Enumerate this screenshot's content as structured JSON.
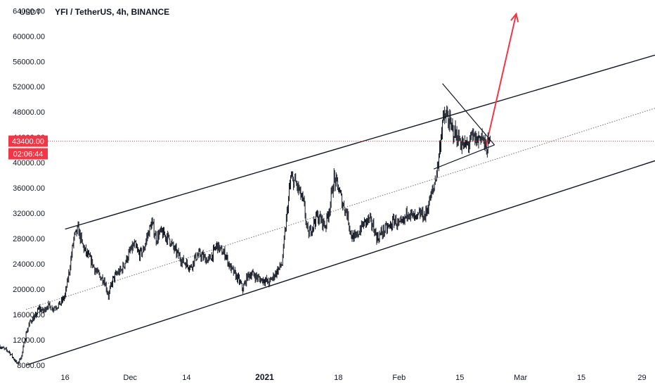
{
  "header": {
    "currency": "USDT",
    "symbol_title": "YFI / TetherUS, 4h, BINANCE"
  },
  "chart_data": {
    "type": "candlestick",
    "symbol": "YFI / TetherUS",
    "interval": "4h",
    "exchange": "BINANCE",
    "y_unit": "USDT",
    "y_tick_labels": [
      "64000.00",
      "60000.00",
      "56000.00",
      "52000.00",
      "48000.00",
      "44000.00",
      "40000.00",
      "36000.00",
      "32000.00",
      "28000.00",
      "24000.00",
      "20000.00",
      "16000.00",
      "12000.00",
      "8000.00"
    ],
    "y_ticks": [
      64000,
      60000,
      56000,
      52000,
      48000,
      44000,
      40000,
      36000,
      32000,
      28000,
      24000,
      20000,
      16000,
      12000,
      8000
    ],
    "ylim": [
      7000,
      65700
    ],
    "x_tick_labels": [
      {
        "label": "16",
        "date": "2020-11-16"
      },
      {
        "label": "Dec",
        "date": "2020-12-01"
      },
      {
        "label": "14",
        "date": "2020-12-14"
      },
      {
        "label": "2021",
        "date": "2021-01-01",
        "bold": true
      },
      {
        "label": "18",
        "date": "2021-01-18"
      },
      {
        "label": "Feb",
        "date": "2021-02-01"
      },
      {
        "label": "15",
        "date": "2021-02-15"
      },
      {
        "label": "Mar",
        "date": "2021-03-01"
      },
      {
        "label": "15",
        "date": "2021-03-15"
      },
      {
        "label": "29",
        "date": "2021-03-29"
      }
    ],
    "xlim": [
      "2020-11-01",
      "2021-04-01"
    ],
    "price_path": [
      [
        "2020-11-01",
        11000
      ],
      [
        "2020-11-02",
        10500
      ],
      [
        "2020-11-03",
        10200
      ],
      [
        "2020-11-04",
        9200
      ],
      [
        "2020-11-05",
        8200
      ],
      [
        "2020-11-06",
        9500
      ],
      [
        "2020-11-07",
        13000
      ],
      [
        "2020-11-08",
        15000
      ],
      [
        "2020-11-09",
        15500
      ],
      [
        "2020-11-10",
        17000
      ],
      [
        "2020-11-11",
        16500
      ],
      [
        "2020-11-12",
        17500
      ],
      [
        "2020-11-13",
        17000
      ],
      [
        "2020-11-14",
        17300
      ],
      [
        "2020-11-15",
        17800
      ],
      [
        "2020-11-16",
        19000
      ],
      [
        "2020-11-17",
        23000
      ],
      [
        "2020-11-18",
        28000
      ],
      [
        "2020-11-19",
        29500
      ],
      [
        "2020-11-20",
        27000
      ],
      [
        "2020-11-21",
        25500
      ],
      [
        "2020-11-22",
        24500
      ],
      [
        "2020-11-23",
        23000
      ],
      [
        "2020-11-24",
        22000
      ],
      [
        "2020-11-25",
        21500
      ],
      [
        "2020-11-26",
        19000
      ],
      [
        "2020-11-27",
        21500
      ],
      [
        "2020-11-28",
        22500
      ],
      [
        "2020-11-29",
        23000
      ],
      [
        "2020-11-30",
        24500
      ],
      [
        "2020-12-01",
        26000
      ],
      [
        "2020-12-02",
        27000
      ],
      [
        "2020-12-03",
        25500
      ],
      [
        "2020-12-04",
        26000
      ],
      [
        "2020-12-05",
        28500
      ],
      [
        "2020-12-06",
        30500
      ],
      [
        "2020-12-07",
        28000
      ],
      [
        "2020-12-08",
        29000
      ],
      [
        "2020-12-09",
        28500
      ],
      [
        "2020-12-10",
        28000
      ],
      [
        "2020-12-11",
        26500
      ],
      [
        "2020-12-12",
        25500
      ],
      [
        "2020-12-13",
        24500
      ],
      [
        "2020-12-14",
        24000
      ],
      [
        "2020-12-15",
        23500
      ],
      [
        "2020-12-16",
        25000
      ],
      [
        "2020-12-17",
        25500
      ],
      [
        "2020-12-18",
        25000
      ],
      [
        "2020-12-19",
        24500
      ],
      [
        "2020-12-20",
        25500
      ],
      [
        "2020-12-21",
        27000
      ],
      [
        "2020-12-22",
        26000
      ],
      [
        "2020-12-23",
        25500
      ],
      [
        "2020-12-24",
        23500
      ],
      [
        "2020-12-25",
        22500
      ],
      [
        "2020-12-26",
        21500
      ],
      [
        "2020-12-27",
        20000
      ],
      [
        "2020-12-28",
        22000
      ],
      [
        "2020-12-29",
        22500
      ],
      [
        "2020-12-30",
        22000
      ],
      [
        "2020-12-31",
        21500
      ],
      [
        "2021-01-01",
        21500
      ],
      [
        "2021-01-02",
        21000
      ],
      [
        "2021-01-03",
        22000
      ],
      [
        "2021-01-04",
        23000
      ],
      [
        "2021-01-05",
        24000
      ],
      [
        "2021-01-06",
        31000
      ],
      [
        "2021-01-07",
        37500
      ],
      [
        "2021-01-08",
        37000
      ],
      [
        "2021-01-09",
        35500
      ],
      [
        "2021-01-10",
        33500
      ],
      [
        "2021-01-11",
        28500
      ],
      [
        "2021-01-12",
        30000
      ],
      [
        "2021-01-13",
        31500
      ],
      [
        "2021-01-14",
        31000
      ],
      [
        "2021-01-15",
        30000
      ],
      [
        "2021-01-16",
        33000
      ],
      [
        "2021-01-17",
        37500
      ],
      [
        "2021-01-18",
        36000
      ],
      [
        "2021-01-19",
        33500
      ],
      [
        "2021-01-20",
        32000
      ],
      [
        "2021-01-21",
        28500
      ],
      [
        "2021-01-22",
        28000
      ],
      [
        "2021-01-23",
        29500
      ],
      [
        "2021-01-24",
        30500
      ],
      [
        "2021-01-25",
        31000
      ],
      [
        "2021-01-26",
        30000
      ],
      [
        "2021-01-27",
        28000
      ],
      [
        "2021-01-28",
        29000
      ],
      [
        "2021-01-29",
        29500
      ],
      [
        "2021-01-30",
        30000
      ],
      [
        "2021-01-31",
        31000
      ],
      [
        "2021-02-01",
        30000
      ],
      [
        "2021-02-02",
        30500
      ],
      [
        "2021-02-03",
        32500
      ],
      [
        "2021-02-04",
        31500
      ],
      [
        "2021-02-05",
        31000
      ],
      [
        "2021-02-06",
        32000
      ],
      [
        "2021-02-07",
        31500
      ],
      [
        "2021-02-08",
        34000
      ],
      [
        "2021-02-09",
        36000
      ],
      [
        "2021-02-10",
        40000
      ],
      [
        "2021-02-11",
        46500
      ],
      [
        "2021-02-12",
        47500
      ],
      [
        "2021-02-13",
        45500
      ],
      [
        "2021-02-14",
        44500
      ],
      [
        "2021-02-15",
        43500
      ],
      [
        "2021-02-16",
        42500
      ],
      [
        "2021-02-17",
        43000
      ],
      [
        "2021-02-18",
        44000
      ],
      [
        "2021-02-19",
        43500
      ],
      [
        "2021-02-20",
        44500
      ],
      [
        "2021-02-21",
        42000
      ],
      [
        "2021-02-22",
        43400
      ]
    ],
    "channel": {
      "upper": [
        [
          "2020-11-16",
          29500
        ],
        [
          "2021-04-01",
          57000
        ]
      ],
      "lower": [
        [
          "2020-11-07",
          8000
        ],
        [
          "2021-04-01",
          40300
        ]
      ],
      "middle": [
        [
          "2020-11-07",
          16800
        ],
        [
          "2021-04-01",
          48600
        ]
      ]
    },
    "triangle": {
      "upper": [
        [
          "2021-02-11",
          52500
        ],
        [
          "2021-02-23",
          42800
        ]
      ],
      "lower": [
        [
          "2021-02-09",
          39000
        ],
        [
          "2021-02-23",
          42800
        ]
      ]
    },
    "forecast_arrow": {
      "from": [
        "2021-02-21",
        42500
      ],
      "to": [
        "2021-02-28",
        63500
      ]
    },
    "current_price": 43400,
    "current_price_label": "43400.00",
    "countdown": "02:06:44",
    "colors": {
      "candles": "#131722",
      "channel": "#131722",
      "midline": "#707070",
      "current_price": "#f23645",
      "forecast_arrow": "#f23645"
    }
  }
}
